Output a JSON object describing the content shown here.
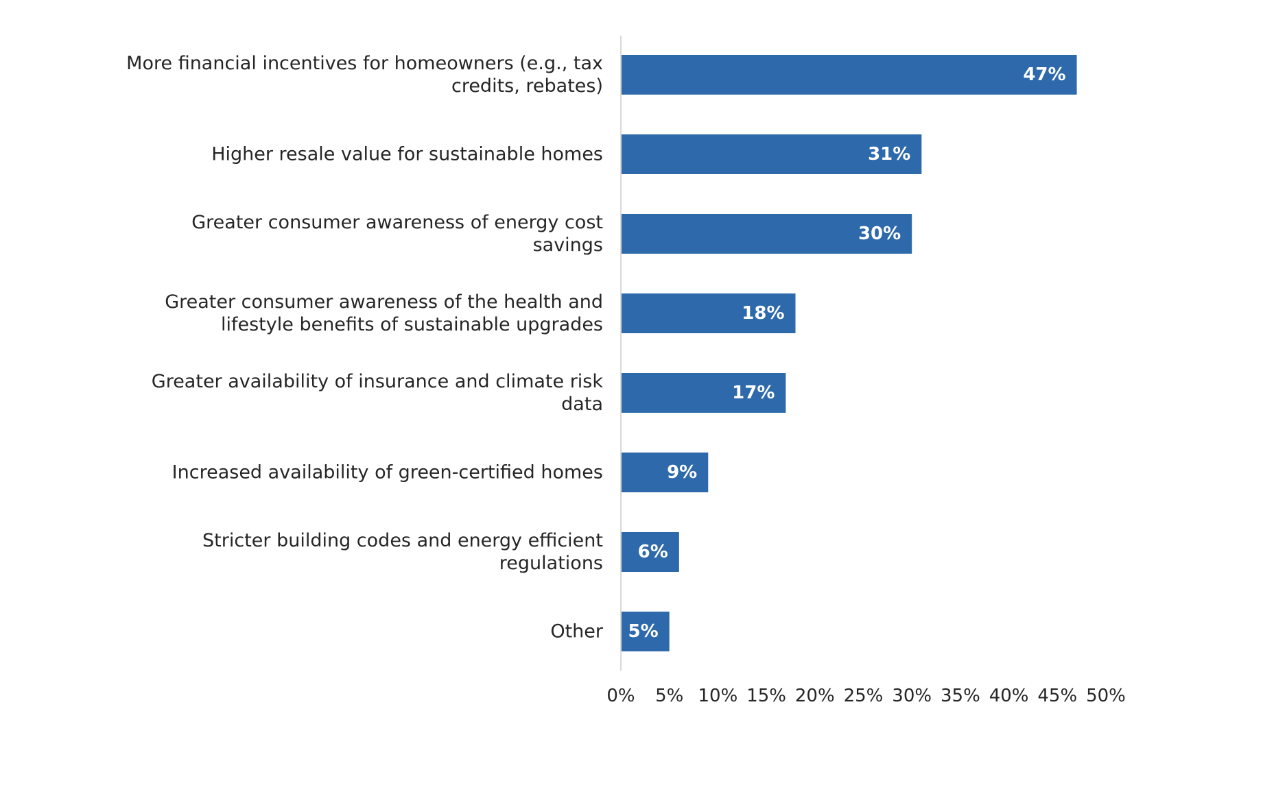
{
  "chart_data": {
    "type": "bar",
    "orientation": "horizontal",
    "title": "",
    "xlabel": "",
    "ylabel": "",
    "xlim": [
      0,
      50
    ],
    "tick_step": 5,
    "tick_suffix": "%",
    "grid": false,
    "legend": "none",
    "bar_color": "#2e6aab",
    "label_color": "#ffffff",
    "text_color": "#262626",
    "axis_color": "#d9d9d9",
    "categories": [
      [
        "More financial incentives for homeowners (e.g., tax",
        "credits, rebates)"
      ],
      [
        "Higher resale value for sustainable homes"
      ],
      [
        "Greater consumer awareness of energy cost",
        "savings"
      ],
      [
        "Greater consumer awareness of the health and",
        "lifestyle benefits of sustainable upgrades"
      ],
      [
        "Greater availability of insurance and climate risk",
        "data"
      ],
      [
        "Increased availability of green-certified homes"
      ],
      [
        "Stricter building codes and energy efficient",
        "regulations"
      ],
      [
        "Other"
      ]
    ],
    "values": [
      47,
      31,
      30,
      18,
      17,
      9,
      6,
      5
    ],
    "data_labels": [
      "47%",
      "31%",
      "30%",
      "18%",
      "17%",
      "9%",
      "6%",
      "5%"
    ],
    "tick_labels": [
      "0%",
      "5%",
      "10%",
      "15%",
      "20%",
      "25%",
      "30%",
      "35%",
      "40%",
      "45%",
      "50%"
    ]
  }
}
